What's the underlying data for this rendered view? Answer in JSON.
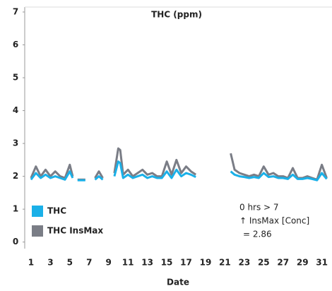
{
  "chart_data": {
    "type": "line",
    "title": "THC (ppm)",
    "x_label": "Date",
    "x": [
      1,
      1.5,
      2,
      2.5,
      3,
      3.5,
      4,
      4.5,
      5,
      5.3,
      5.5,
      5.8,
      6.2,
      6.6,
      7,
      7.6,
      8,
      8.4,
      9,
      9.6,
      10,
      10.2,
      10.5,
      11,
      11.5,
      12,
      12.5,
      13,
      13.5,
      14,
      14.5,
      15,
      15.5,
      16,
      16.5,
      17,
      17.5,
      18,
      20,
      21.6,
      22,
      22.5,
      23,
      23.5,
      24,
      24.5,
      25,
      25.5,
      26,
      26.5,
      27,
      27.5,
      28,
      28.5,
      29,
      29.5,
      30,
      30.5,
      31,
      31.5
    ],
    "series": [
      {
        "name": "THC InsMax",
        "color": "#7a7d86",
        "values": [
          1.95,
          2.3,
          2.0,
          2.2,
          2.0,
          2.15,
          2.0,
          1.95,
          2.35,
          2.0,
          null,
          1.9,
          1.9,
          1.9,
          null,
          1.95,
          2.15,
          1.95,
          null,
          2.1,
          2.85,
          2.8,
          2.05,
          2.2,
          2.0,
          2.1,
          2.2,
          2.05,
          2.1,
          2.0,
          2.0,
          2.45,
          2.05,
          2.5,
          2.1,
          2.3,
          2.15,
          2.05,
          null,
          2.7,
          2.2,
          2.1,
          2.05,
          2.0,
          2.05,
          2.0,
          2.3,
          2.05,
          2.1,
          2.0,
          2.0,
          1.95,
          2.25,
          1.95,
          1.95,
          2.0,
          1.95,
          1.9,
          2.35,
          1.95
        ]
      },
      {
        "name": "THC",
        "color": "#1ab0e8",
        "values": [
          1.9,
          2.1,
          1.95,
          2.05,
          1.95,
          2.0,
          1.95,
          1.9,
          2.15,
          1.95,
          null,
          1.88,
          1.88,
          1.88,
          null,
          1.9,
          2.0,
          1.9,
          null,
          2.0,
          2.45,
          2.4,
          1.95,
          2.05,
          1.95,
          2.0,
          2.05,
          1.95,
          2.0,
          1.95,
          1.95,
          2.15,
          1.95,
          2.2,
          2.0,
          2.1,
          2.05,
          1.98,
          null,
          2.15,
          2.05,
          2.0,
          1.98,
          1.95,
          1.98,
          1.95,
          2.1,
          1.98,
          2.0,
          1.95,
          1.95,
          1.92,
          2.05,
          1.92,
          1.92,
          1.95,
          1.92,
          1.88,
          2.1,
          1.92
        ]
      }
    ],
    "annotation": [
      "0 hrs > 7",
      "↑ InsMax [Conc]",
      "= 2.86"
    ],
    "xlim": [
      0.35,
      31.9
    ],
    "xticks": [
      1,
      3,
      5,
      7,
      9,
      11,
      13,
      15,
      17,
      19,
      21,
      23,
      25,
      27,
      29,
      31
    ],
    "ylim": [
      -0.2,
      7.15
    ],
    "yticks": [
      0,
      1,
      2,
      3,
      4,
      5,
      6,
      7
    ],
    "grid": false,
    "legend": "lower left"
  }
}
